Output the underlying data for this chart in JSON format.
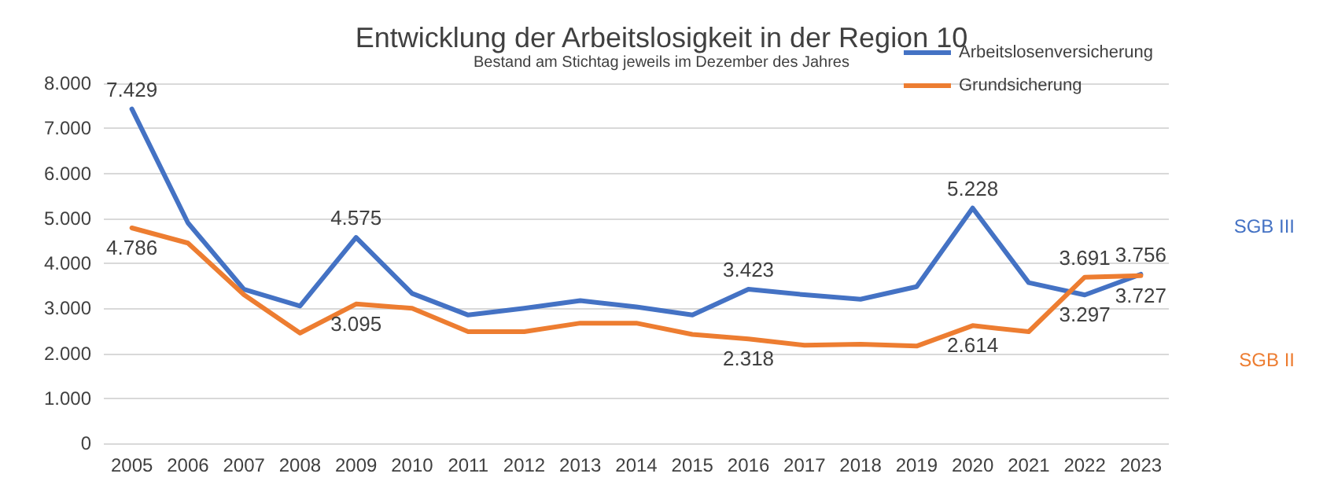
{
  "chart_data": {
    "type": "line",
    "title": "Entwicklung der Arbeitslosigkeit in der Region 10",
    "subtitle": "Bestand am Stichtag jeweils im Dezember des Jahres",
    "categories": [
      "2005",
      "2006",
      "2007",
      "2008",
      "2009",
      "2010",
      "2011",
      "2012",
      "2013",
      "2014",
      "2015",
      "2016",
      "2017",
      "2018",
      "2019",
      "2020",
      "2021",
      "2022",
      "2023"
    ],
    "series": [
      {
        "name": "Arbeitslosenversicherung",
        "color": "#4472c4",
        "values": [
          7429,
          4900,
          3420,
          3050,
          4575,
          3330,
          2850,
          3000,
          3170,
          3030,
          2850,
          3423,
          3300,
          3200,
          3480,
          5228,
          3570,
          3297,
          3756
        ],
        "value_labels": [
          "7.429",
          null,
          null,
          null,
          "4.575",
          null,
          null,
          null,
          null,
          null,
          null,
          "3.423",
          null,
          null,
          null,
          "5.228",
          null,
          "3.297",
          "3.756"
        ]
      },
      {
        "name": "Grundsicherung",
        "color": "#ed7d31",
        "values": [
          4786,
          4450,
          3300,
          2450,
          3095,
          3000,
          2480,
          2480,
          2670,
          2670,
          2420,
          2318,
          2180,
          2200,
          2160,
          2614,
          2480,
          3691,
          3727
        ],
        "value_labels": [
          "4.786",
          null,
          null,
          null,
          "3.095",
          null,
          null,
          null,
          null,
          null,
          null,
          "2.318",
          null,
          null,
          null,
          "2.614",
          null,
          "3.691",
          "3.727"
        ]
      }
    ],
    "ylim": [
      0,
      8000
    ],
    "yticks": [
      {
        "value": 0,
        "label": "0"
      },
      {
        "value": 1000,
        "label": "1.000"
      },
      {
        "value": 2000,
        "label": "2.000"
      },
      {
        "value": 3000,
        "label": "3.000"
      },
      {
        "value": 4000,
        "label": "4.000"
      },
      {
        "value": 5000,
        "label": "5.000"
      },
      {
        "value": 6000,
        "label": "6.000"
      },
      {
        "value": 7000,
        "label": "7.000"
      },
      {
        "value": 8000,
        "label": "8.000"
      }
    ],
    "annotations": [
      "SGB III",
      "SGB II"
    ],
    "grid": "y",
    "legend": "top right",
    "marker": "none",
    "line_style": "solid"
  }
}
